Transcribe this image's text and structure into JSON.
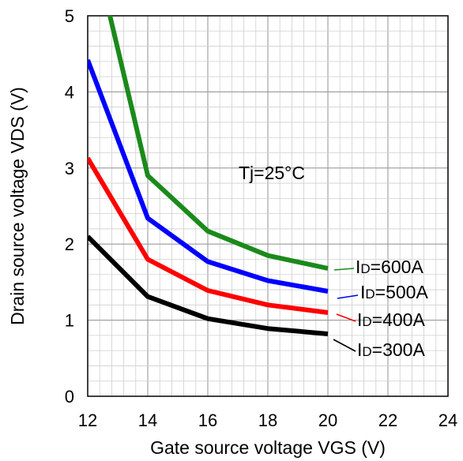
{
  "chart_data": {
    "type": "line",
    "xlabel": "Gate source voltage VGS (V)",
    "ylabel": "Drain source voltage VDS (V)",
    "xlim": [
      12,
      24
    ],
    "ylim": [
      0,
      5
    ],
    "x_ticks": [
      "12",
      "14",
      "16",
      "18",
      "20",
      "22",
      "24"
    ],
    "y_ticks": [
      "0",
      "1",
      "2",
      "3",
      "4",
      "5"
    ],
    "grid": true,
    "annotation": "Tj=25°C",
    "series": [
      {
        "name_prefix": "I",
        "name_sub": "D",
        "name_suffix": "=600A",
        "color": "#1a8a1a",
        "x": [
          12.5,
          14,
          16,
          18,
          20
        ],
        "y": [
          5.4,
          2.9,
          2.17,
          1.85,
          1.68
        ]
      },
      {
        "name_prefix": "I",
        "name_sub": "D",
        "name_suffix": "=500A",
        "color": "#0000ff",
        "x": [
          12,
          14,
          16,
          18,
          20
        ],
        "y": [
          4.42,
          2.34,
          1.77,
          1.52,
          1.38
        ]
      },
      {
        "name_prefix": "I",
        "name_sub": "D",
        "name_suffix": "=400A",
        "color": "#ff0000",
        "x": [
          12,
          14,
          16,
          18,
          20
        ],
        "y": [
          3.13,
          1.8,
          1.39,
          1.2,
          1.1
        ]
      },
      {
        "name_prefix": "I",
        "name_sub": "D",
        "name_suffix": "=300A",
        "color": "#000000",
        "x": [
          12,
          14,
          16,
          18,
          20
        ],
        "y": [
          2.1,
          1.31,
          1.02,
          0.89,
          0.82
        ]
      }
    ]
  }
}
